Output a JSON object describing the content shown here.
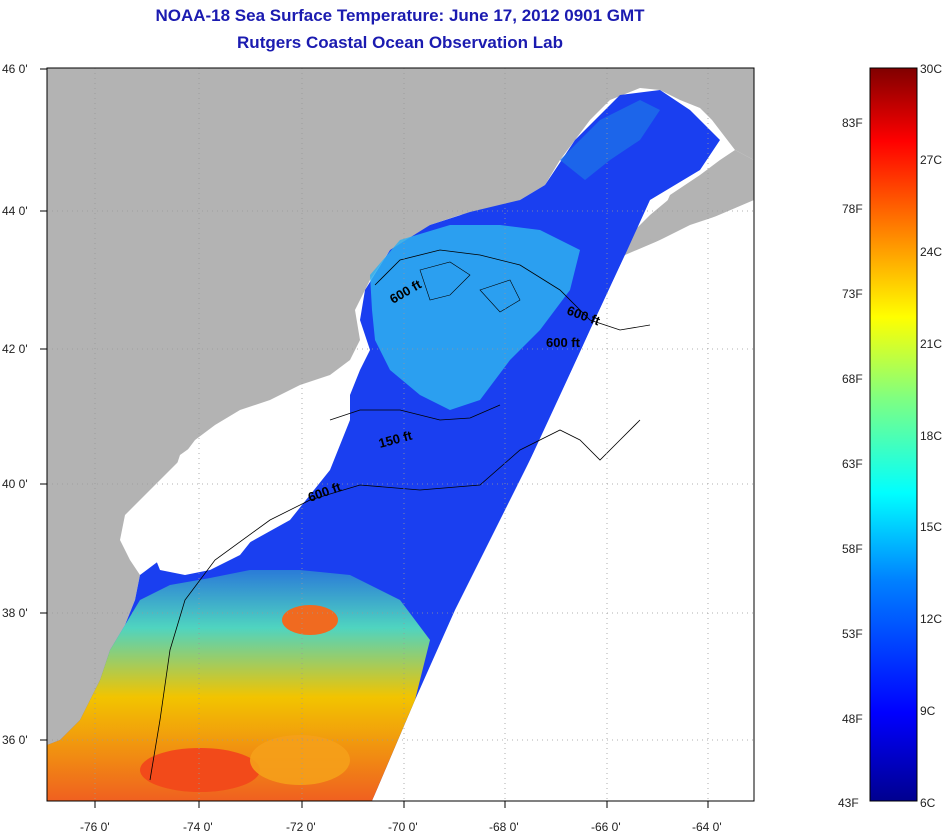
{
  "title_line1": "NOAA-18 Sea Surface Temperature:  June 17, 2012 0901 GMT",
  "title_line2": "Rutgers Coastal Ocean Observation Lab",
  "lat_labels": [
    "46 0'",
    "44 0'",
    "42 0'",
    "40 0'",
    "38 0'",
    "36 0'"
  ],
  "lon_labels": [
    "-76 0'",
    "-74 0'",
    "-72 0'",
    "-70 0'",
    "-68 0'",
    "-66 0'",
    "-64 0'"
  ],
  "contour_labels": [
    "600 ft",
    "600 ft",
    "600 ft",
    "150 ft",
    "600 ft"
  ],
  "colorbar": {
    "celsius": [
      "30C",
      "27C",
      "24C",
      "21C",
      "18C",
      "15C",
      "12C",
      "9C",
      "6C"
    ],
    "fahrenheit": [
      "83F",
      "78F",
      "73F",
      "68F",
      "63F",
      "58F",
      "53F",
      "48F",
      "43F"
    ]
  },
  "colors": {
    "land": "#b3b3b3",
    "no_data": "#ffffff",
    "title": "#1b1bb0"
  }
}
